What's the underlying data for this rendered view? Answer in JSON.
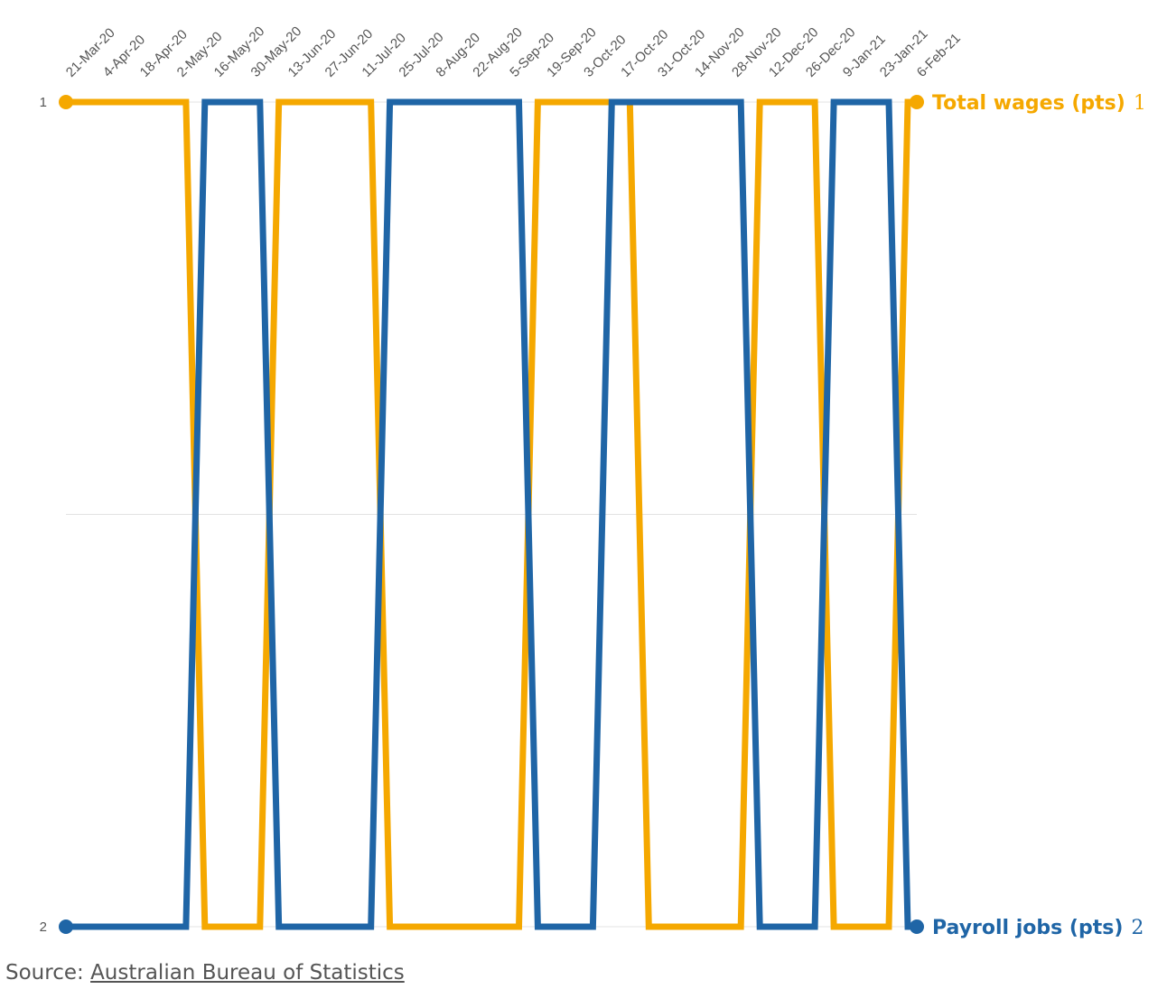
{
  "chart_data": {
    "type": "line",
    "x": [
      "21-Mar-20",
      "4-Apr-20",
      "18-Apr-20",
      "2-May-20",
      "16-May-20",
      "30-May-20",
      "13-Jun-20",
      "27-Jun-20",
      "11-Jul-20",
      "25-Jul-20",
      "8-Aug-20",
      "22-Aug-20",
      "5-Sep-20",
      "19-Sep-20",
      "3-Oct-20",
      "17-Oct-20",
      "31-Oct-20",
      "14-Nov-20",
      "28-Nov-20",
      "12-Dec-20",
      "26-Dec-20",
      "9-Jan-21",
      "23-Jan-21",
      "6-Feb-21"
    ],
    "y_ticks": [
      1,
      2
    ],
    "y_axis": "inverted",
    "ylim": [
      1,
      2
    ],
    "grid": "horizontal",
    "series": [
      {
        "name": "Total wages (pts)",
        "color": "#f5a800",
        "end_value": "1",
        "values": [
          1,
          1,
          1,
          1,
          2,
          2,
          1,
          1,
          1,
          2,
          2,
          2,
          2,
          1,
          1,
          1,
          2,
          2,
          2,
          1,
          1,
          2,
          2,
          1
        ]
      },
      {
        "name": "Payroll jobs (pts)",
        "color": "#1f65a6",
        "end_value": "2",
        "values": [
          2,
          2,
          2,
          2,
          1,
          1,
          2,
          2,
          2,
          1,
          1,
          1,
          1,
          2,
          2,
          1,
          1,
          1,
          1,
          2,
          2,
          1,
          1,
          2
        ]
      }
    ]
  },
  "source": {
    "prefix": "Source: ",
    "link_text": "Australian Bureau of Statistics"
  }
}
